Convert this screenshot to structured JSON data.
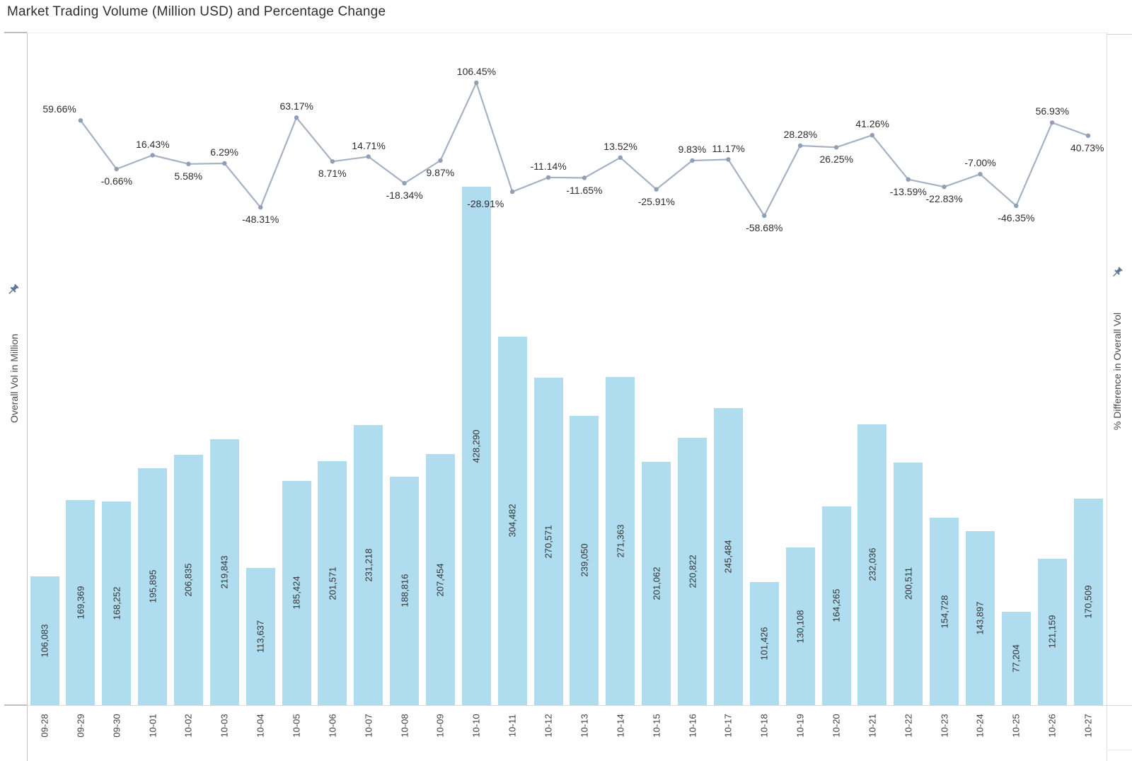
{
  "title": "Market Trading Volume (Million USD) and Percentage Change",
  "left_axis": {
    "title": "Overall Vol in Million",
    "icon": "pushpin-icon"
  },
  "right_axis": {
    "title": "% Difference in Overall Vol",
    "icon": "pushpin-icon"
  },
  "colors": {
    "bar_fill": "#AFDCEE",
    "line": "#A6B2C4",
    "dot": "#8FA0B6",
    "bar_label_text": "#333333",
    "pct_label_text": "#2e2e2e",
    "axis_label_text": "#3f3f3f",
    "axis_title_text": "#4b4b4b",
    "title_text": "#2f2f2f",
    "pin_icon": "#5f7897",
    "border": "#c5c5c5"
  },
  "chart_data": {
    "type": "combo-bar-line",
    "title": "Market Trading Volume (Million USD) and Percentage Change",
    "categories": [
      "09-28",
      "09-29",
      "09-30",
      "10-01",
      "10-02",
      "10-03",
      "10-04",
      "10-05",
      "10-06",
      "10-07",
      "10-08",
      "10-09",
      "10-10",
      "10-11",
      "10-12",
      "10-13",
      "10-14",
      "10-15",
      "10-16",
      "10-17",
      "10-18",
      "10-19",
      "10-20",
      "10-21",
      "10-22",
      "10-23",
      "10-24",
      "10-25",
      "10-26",
      "10-27"
    ],
    "series": [
      {
        "name": "Overall Vol in Million",
        "type": "bar",
        "values": [
          106083,
          169369,
          168252,
          195895,
          206835,
          219843,
          113637,
          185424,
          201571,
          231218,
          188816,
          207454,
          428290,
          304482,
          270571,
          239050,
          271363,
          201062,
          220822,
          245484,
          101426,
          130108,
          164265,
          232036,
          200511,
          154728,
          143897,
          77204,
          121159,
          170509
        ]
      },
      {
        "name": "% Difference in Overall Vol",
        "type": "line",
        "starts_at_category_index": 1,
        "unit": "%",
        "values": [
          59.66,
          -0.66,
          16.43,
          5.58,
          6.29,
          -48.31,
          63.17,
          8.71,
          14.71,
          -18.34,
          9.87,
          106.45,
          -28.91,
          -11.14,
          -11.65,
          13.52,
          -25.91,
          9.83,
          11.17,
          -58.68,
          28.28,
          26.25,
          41.26,
          -13.59,
          -22.83,
          -7.0,
          -46.35,
          56.93,
          40.73
        ]
      }
    ],
    "ylabel_left": "Overall Vol in Million",
    "ylabel_right": "% Difference in Overall Vol",
    "grid": false,
    "legend": false,
    "bar_labels_inside": true,
    "pct_label_sides": [
      "above",
      "below",
      "above",
      "below",
      "above",
      "below",
      "above",
      "below",
      "above",
      "below",
      "below",
      "above",
      "below",
      "above",
      "below",
      "above",
      "below",
      "above",
      "above",
      "below",
      "above",
      "below",
      "above",
      "below",
      "below",
      "above",
      "below",
      "above",
      "below"
    ],
    "pct_label_dx": {
      "0": -30,
      "12": -38
    }
  }
}
